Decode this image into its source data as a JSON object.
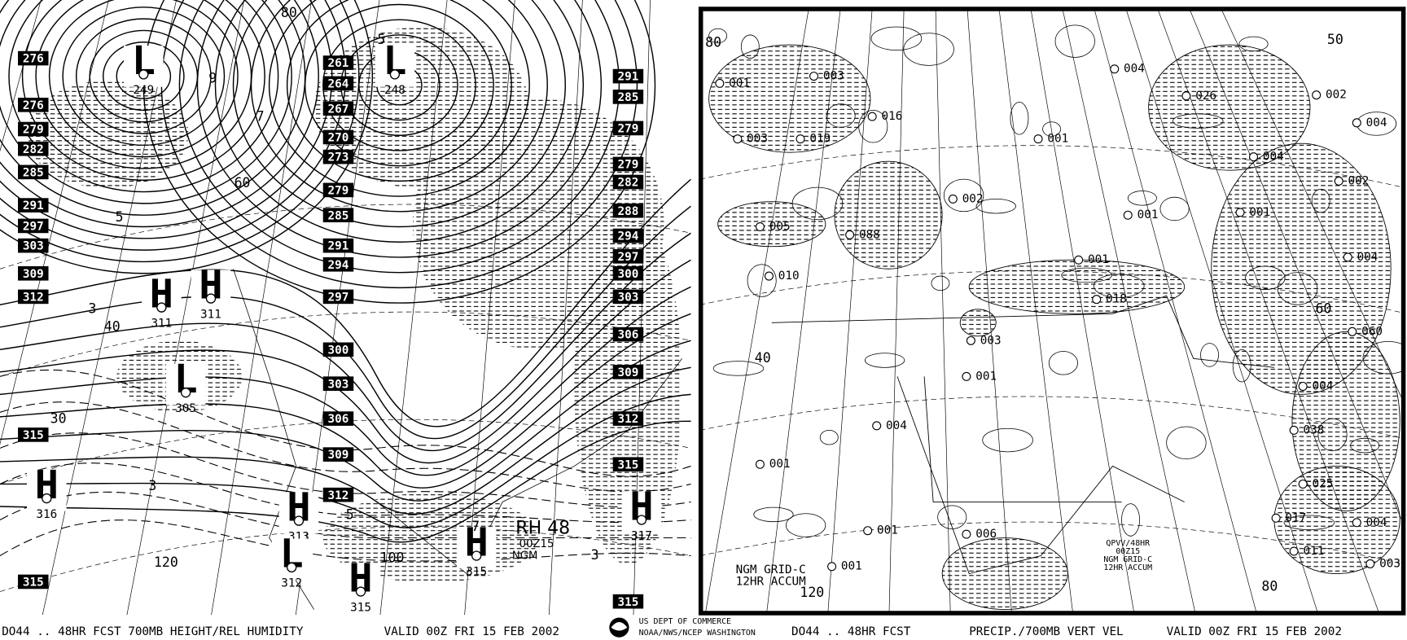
{
  "left_panel": {
    "box_labels": [
      "276",
      "276",
      "279",
      "282",
      "285",
      "291",
      "297",
      "303",
      "309",
      "312",
      "315",
      "315",
      "261",
      "264",
      "267",
      "270",
      "273",
      "279",
      "285",
      "291",
      "294",
      "297",
      "300",
      "303",
      "306",
      "309",
      "312",
      "291",
      "285",
      "279",
      "279",
      "282",
      "288",
      "294",
      "297",
      "300",
      "303",
      "306",
      "309",
      "312",
      "315",
      "315"
    ],
    "centers": [
      {
        "symbol": "L",
        "value": "249"
      },
      {
        "symbol": "L",
        "value": "248"
      },
      {
        "symbol": "H",
        "value": "311"
      },
      {
        "symbol": "H",
        "value": "311"
      },
      {
        "symbol": "L",
        "value": "305"
      },
      {
        "symbol": "H",
        "value": "316"
      },
      {
        "symbol": "H",
        "value": "313"
      },
      {
        "symbol": "L",
        "value": "312"
      },
      {
        "symbol": "H",
        "value": "315"
      },
      {
        "symbol": "H",
        "value": "315"
      },
      {
        "symbol": "H",
        "value": "317"
      }
    ],
    "contour_labels": [
      "80",
      "5",
      "9",
      "7",
      "5",
      "3",
      "30",
      "40",
      "60",
      "120",
      "100",
      "3",
      "5",
      "7",
      "3"
    ],
    "annotation": [
      "RH 48",
      "00Z15",
      "NGM"
    ]
  },
  "right_panel": {
    "amounts": [
      "001",
      "003",
      "003",
      "016",
      "019",
      "005",
      "088",
      "010",
      "002",
      "001",
      "004",
      "026",
      "002",
      "004",
      "004",
      "002",
      "001",
      "001",
      "001",
      "018",
      "003",
      "001",
      "004",
      "001",
      "001",
      "006",
      "001",
      "060",
      "004",
      "004",
      "038",
      "025",
      "017",
      "011",
      "004",
      "003"
    ],
    "contour_labels": [
      "80",
      "60",
      "40",
      "120",
      "80",
      "50"
    ],
    "grid_note": [
      "NGM GRID-C",
      "12HR ACCUM"
    ],
    "legend_box": [
      "QPVV/48HR",
      "00Z15",
      "NGM GRID-C",
      "12HR ACCUM"
    ]
  },
  "footer": {
    "left_title": "DO44 .. 48HR FCST 700MB HEIGHT/REL HUMIDITY",
    "left_valid": "VALID 00Z FRI 15 FEB 2002",
    "agency": "US DEPT OF COMMERCE",
    "agency_sub": "NOAA/NWS/NCEP WASHINGTON",
    "right_code": "DO44 .. 48HR FCST",
    "right_title": "PRECIP./700MB VERT VEL",
    "right_valid": "VALID 00Z FRI 15 FEB 2002"
  }
}
